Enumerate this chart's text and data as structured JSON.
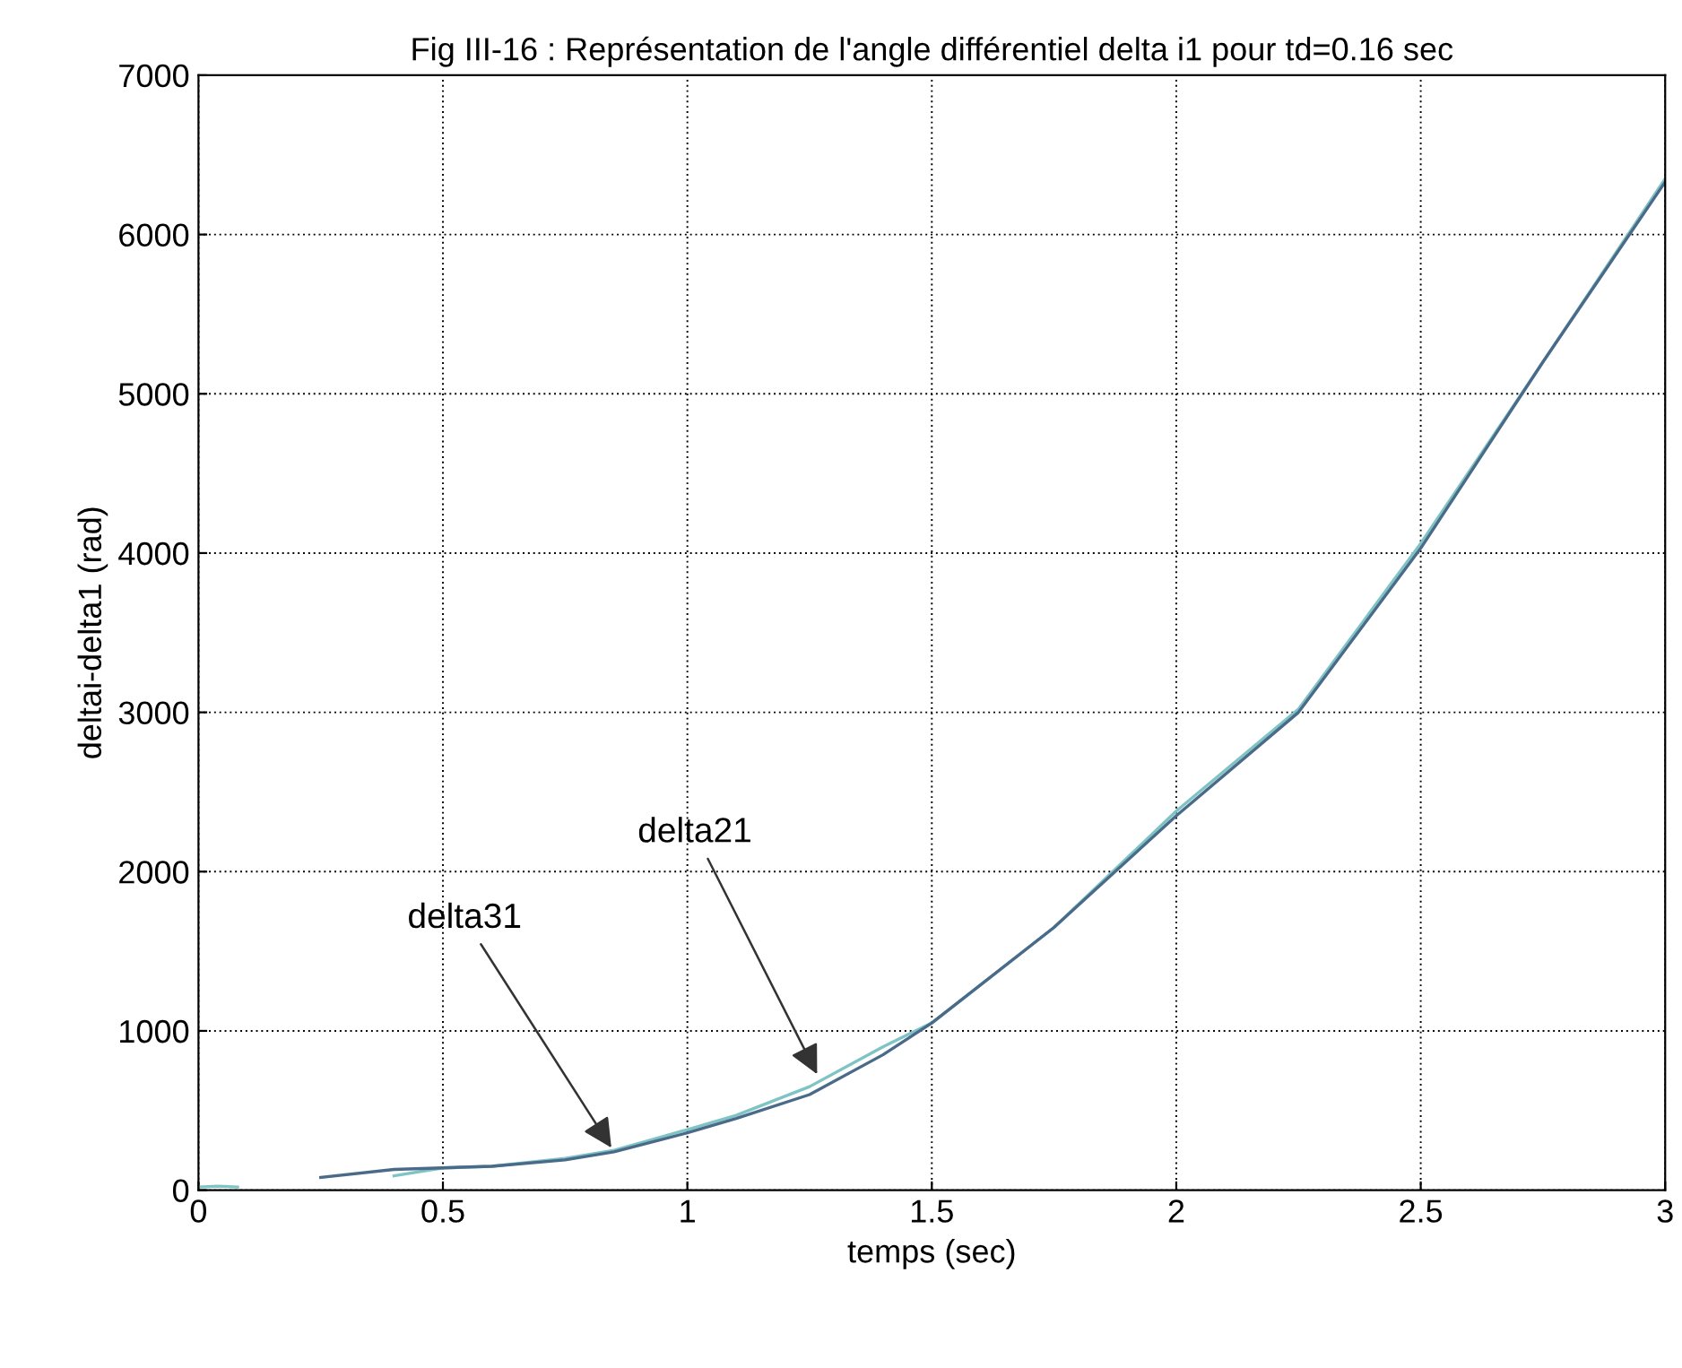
{
  "chart_data": {
    "type": "line",
    "title": "Fig III-16 : Représentation de l'angle différentiel delta i1 pour td=0.16 sec",
    "xlabel": "temps (sec)",
    "ylabel": "deltai-delta1 (rad)",
    "x": [
      0,
      0.04,
      0.08,
      0.25,
      0.4,
      0.5,
      0.6,
      0.75,
      0.85,
      1.0,
      1.1,
      1.25,
      1.4,
      1.5,
      1.75,
      2.0,
      2.25,
      2.5,
      2.75,
      3.0
    ],
    "series": [
      {
        "color": "#7fc4c4",
        "values": [
          20,
          25,
          20,
          null,
          90,
          140,
          150,
          200,
          250,
          380,
          470,
          650,
          900,
          1050,
          1650,
          2380,
          3020,
          4060,
          5200,
          6350
        ]
      },
      {
        "color": "#4a6a8a",
        "values": [
          null,
          null,
          null,
          80,
          130,
          140,
          150,
          190,
          240,
          360,
          450,
          600,
          850,
          1050,
          1650,
          2350,
          3000,
          4030,
          5200,
          6330
        ]
      }
    ],
    "annotations": [
      {
        "text": "delta31",
        "x": 0.85,
        "y": 240
      },
      {
        "text": "delta21",
        "x": 1.27,
        "y": 700
      }
    ],
    "xlim": [
      0,
      3
    ],
    "ylim": [
      0,
      7000
    ],
    "xticks": [
      0,
      0.5,
      1,
      1.5,
      2,
      2.5,
      3
    ],
    "yticks": [
      0,
      1000,
      2000,
      3000,
      4000,
      5000,
      6000,
      7000
    ],
    "grid": true,
    "legend": false
  }
}
